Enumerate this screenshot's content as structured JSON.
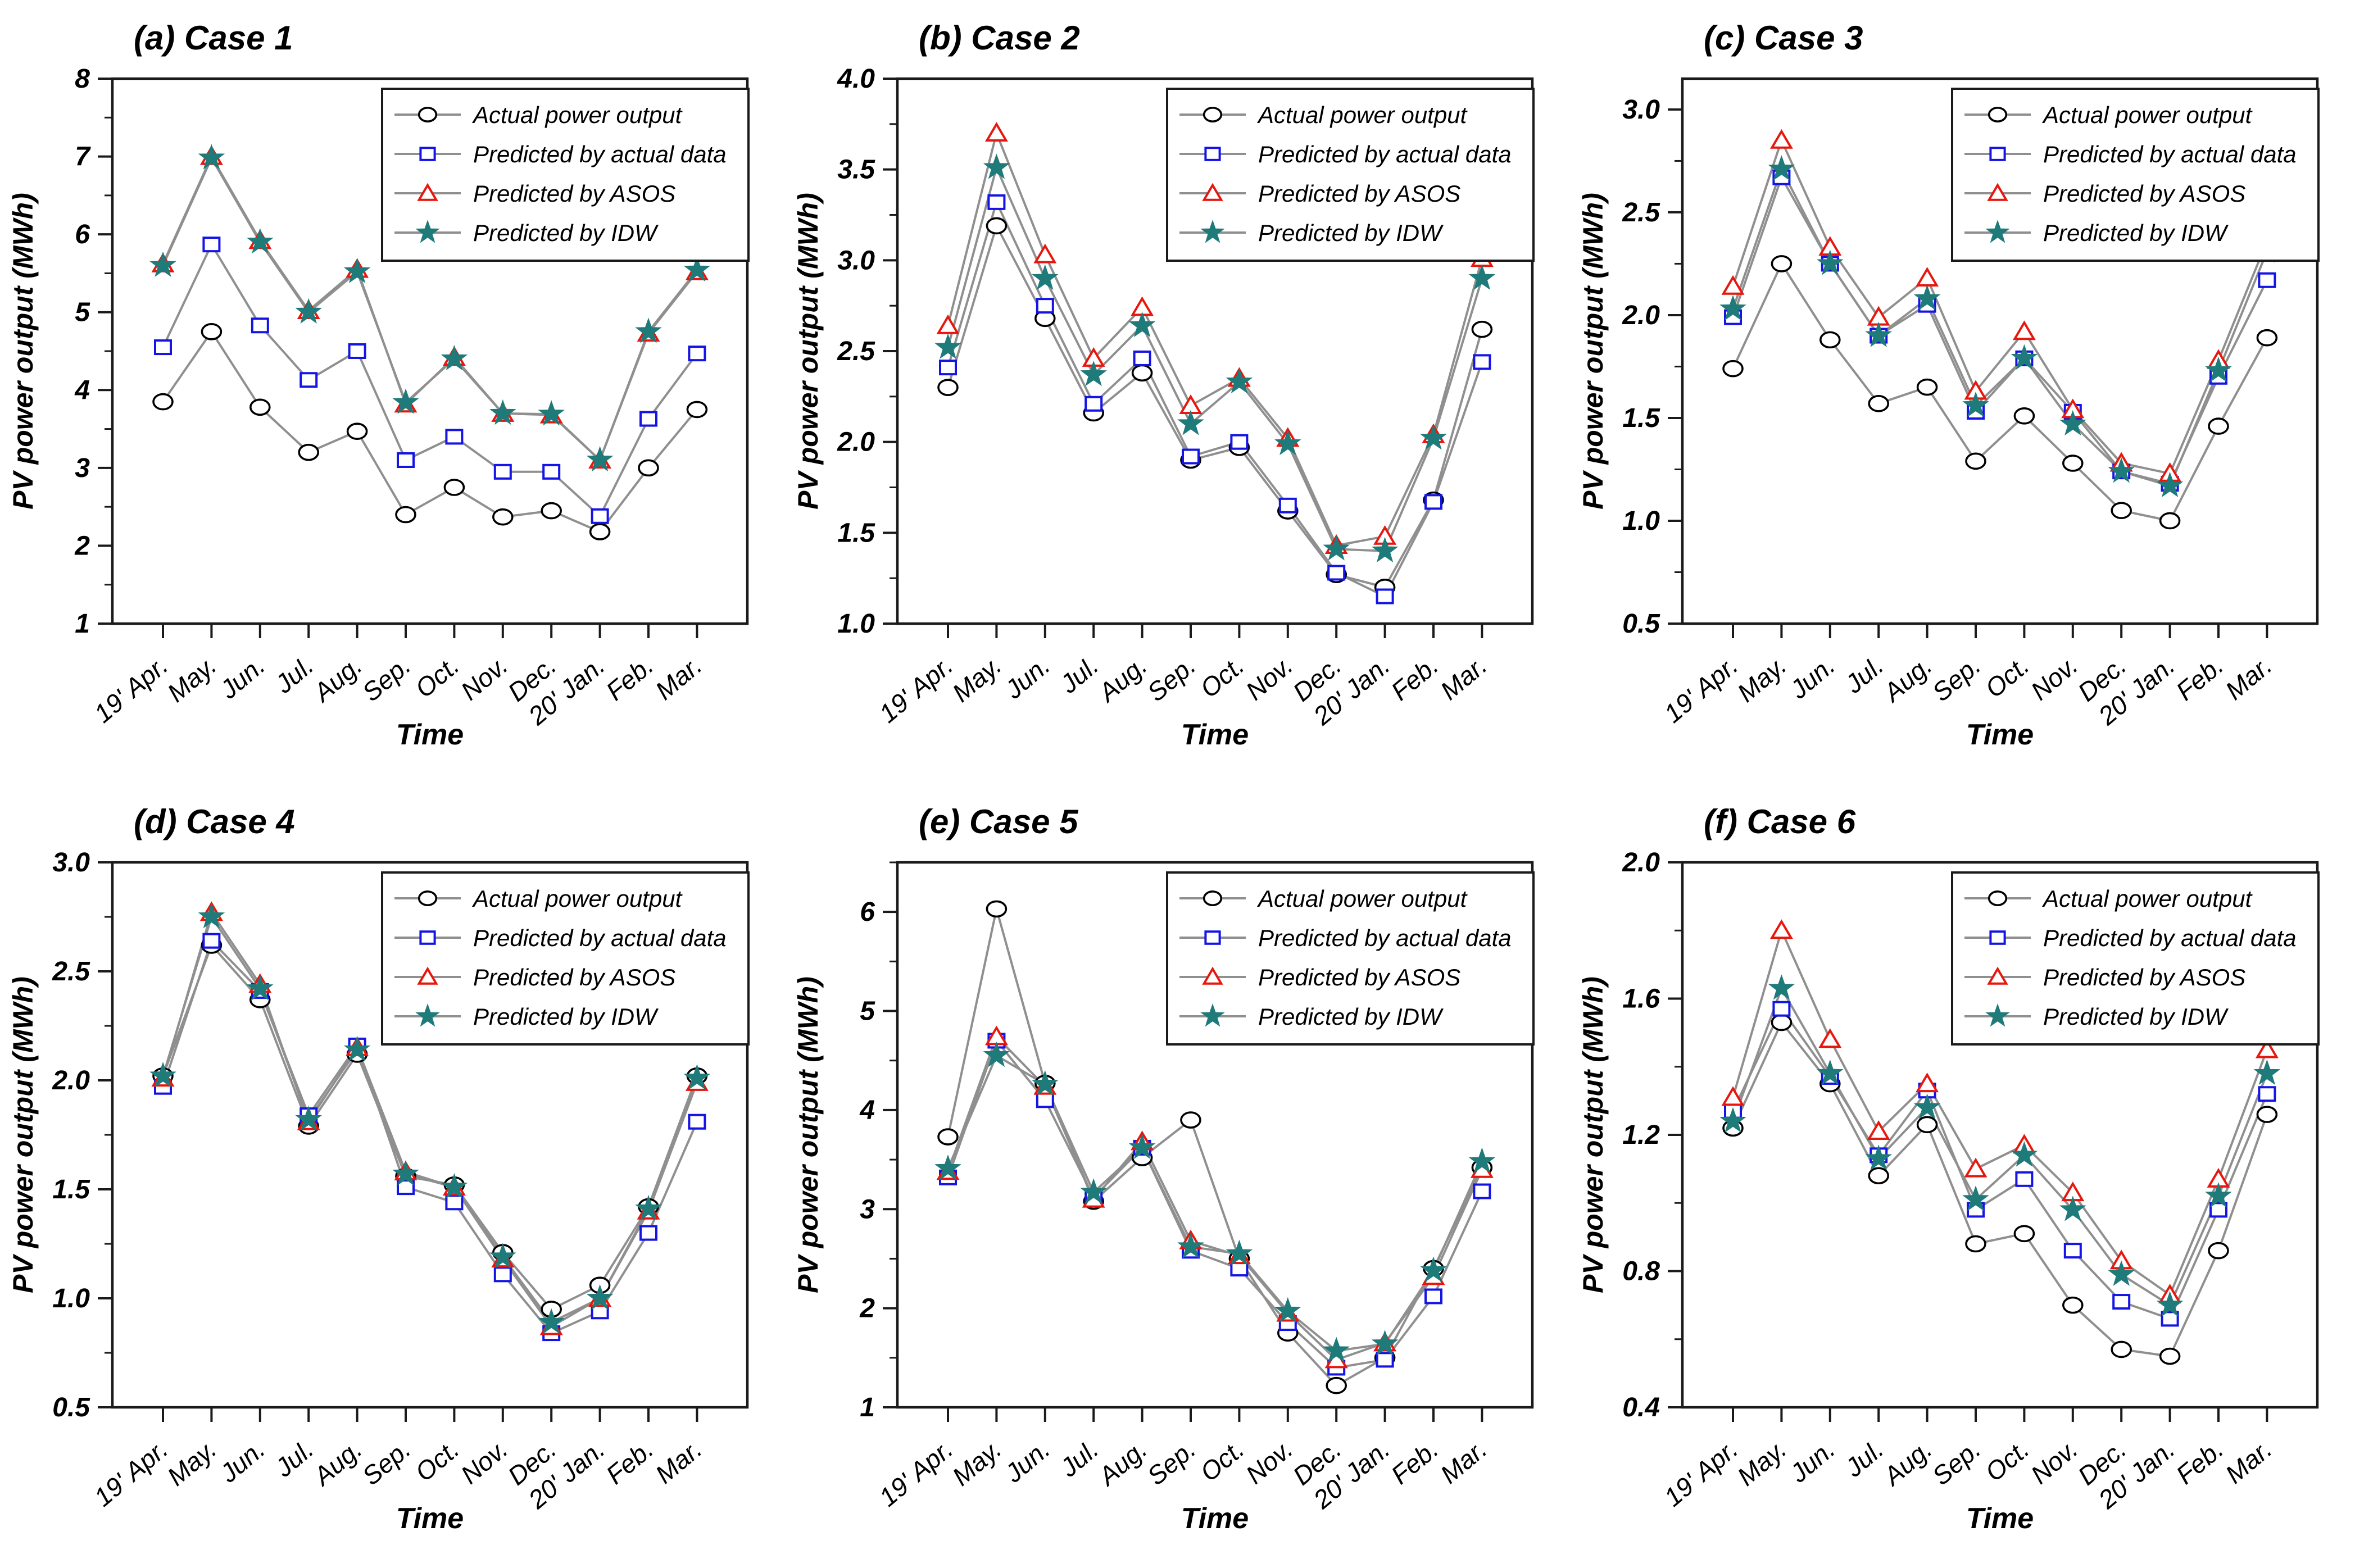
{
  "figure": {
    "x_axis_label": "Time",
    "y_axis_label": "PV power output (MWh)",
    "categories": [
      "19' Apr.",
      "May.",
      "Jun.",
      "Jul.",
      "Aug.",
      "Sep.",
      "Oct.",
      "Nov.",
      "Dec.",
      "20' Jan.",
      "Feb.",
      "Mar."
    ],
    "legend": [
      "Actual power output",
      "Predicted by actual data",
      "Predicted by ASOS",
      "Predicted by IDW"
    ],
    "series_styles": [
      {
        "key": "actual",
        "marker": "circle",
        "marker_color": "#000000",
        "fill": "#ffffff"
      },
      {
        "key": "pred_actual",
        "marker": "square",
        "marker_color": "#1414e6",
        "fill": "#ffffff"
      },
      {
        "key": "pred_asos",
        "marker": "triangle",
        "marker_color": "#e8160c",
        "fill": "#ffffff"
      },
      {
        "key": "pred_idw",
        "marker": "star",
        "marker_color": "#1f7a7a",
        "fill": "#1f7a7a"
      }
    ],
    "line_color": "#8f8f8f",
    "axis_color": "#1a1a1a"
  },
  "chart_data": [
    {
      "type": "line",
      "title": "(a) Case 1",
      "xlabel": "Time",
      "ylabel": "PV power output (MWh)",
      "ylim": [
        1,
        8
      ],
      "yticks": [
        1,
        2,
        3,
        4,
        5,
        6,
        7,
        8
      ],
      "ytick_labels": [
        "1",
        "2",
        "3",
        "4",
        "5",
        "6",
        "7",
        "8"
      ],
      "minor_step": 0.5,
      "series": [
        {
          "name": "Actual power output",
          "values": [
            3.85,
            4.75,
            3.78,
            3.2,
            3.47,
            2.4,
            2.75,
            2.37,
            2.45,
            2.18,
            3.0,
            3.75
          ]
        },
        {
          "name": "Predicted by actual data",
          "values": [
            4.55,
            5.87,
            4.83,
            4.13,
            4.5,
            3.1,
            3.4,
            2.95,
            2.95,
            2.38,
            3.63,
            4.47
          ]
        },
        {
          "name": "Predicted by ASOS",
          "values": [
            5.62,
            7.0,
            5.92,
            5.02,
            5.55,
            3.82,
            4.42,
            3.7,
            3.68,
            3.1,
            4.73,
            5.52
          ]
        },
        {
          "name": "Predicted by IDW",
          "values": [
            5.6,
            6.98,
            5.9,
            5.0,
            5.52,
            3.84,
            4.4,
            3.7,
            3.69,
            3.1,
            4.75,
            5.54
          ]
        }
      ]
    },
    {
      "type": "line",
      "title": "(b) Case 2",
      "xlabel": "Time",
      "ylabel": "PV power output (MWh)",
      "ylim": [
        1.0,
        4.0
      ],
      "yticks": [
        1.0,
        1.5,
        2.0,
        2.5,
        3.0,
        3.5,
        4.0
      ],
      "ytick_labels": [
        "1.0",
        "1.5",
        "2.0",
        "2.5",
        "3.0",
        "3.5",
        "4.0"
      ],
      "minor_step": 0.25,
      "series": [
        {
          "name": "Actual power output",
          "values": [
            2.3,
            3.19,
            2.68,
            2.16,
            2.38,
            1.9,
            1.97,
            1.62,
            1.27,
            1.2,
            1.68,
            2.62
          ]
        },
        {
          "name": "Predicted by actual data",
          "values": [
            2.41,
            3.32,
            2.75,
            2.21,
            2.46,
            1.92,
            2.0,
            1.65,
            1.28,
            1.15,
            1.67,
            2.44
          ]
        },
        {
          "name": "Predicted by ASOS",
          "values": [
            2.64,
            3.7,
            3.03,
            2.46,
            2.74,
            2.2,
            2.35,
            2.02,
            1.43,
            1.48,
            2.04,
            3.01
          ]
        },
        {
          "name": "Predicted by IDW",
          "values": [
            2.52,
            3.51,
            2.9,
            2.37,
            2.64,
            2.1,
            2.33,
            1.99,
            1.41,
            1.4,
            2.02,
            2.9
          ]
        }
      ]
    },
    {
      "type": "line",
      "title": "(c) Case 3",
      "xlabel": "Time",
      "ylabel": "PV power output (MWh)",
      "ylim": [
        0.5,
        3.15
      ],
      "yticks": [
        0.5,
        1.0,
        1.5,
        2.0,
        2.5,
        3.0
      ],
      "ytick_labels": [
        "0.5",
        "1.0",
        "1.5",
        "2.0",
        "2.5",
        "3.0"
      ],
      "minor_step": 0.25,
      "series": [
        {
          "name": "Actual power output",
          "values": [
            1.74,
            2.25,
            1.88,
            1.57,
            1.65,
            1.29,
            1.51,
            1.28,
            1.05,
            1.0,
            1.46,
            1.89
          ]
        },
        {
          "name": "Predicted by actual data",
          "values": [
            1.99,
            2.67,
            2.25,
            1.9,
            2.05,
            1.53,
            1.79,
            1.53,
            1.24,
            1.18,
            1.7,
            2.17
          ]
        },
        {
          "name": "Predicted by ASOS",
          "values": [
            2.14,
            2.85,
            2.33,
            1.99,
            2.18,
            1.63,
            1.92,
            1.54,
            1.28,
            1.23,
            1.78,
            2.36
          ]
        },
        {
          "name": "Predicted by IDW",
          "values": [
            2.03,
            2.71,
            2.25,
            1.9,
            2.08,
            1.56,
            1.79,
            1.47,
            1.24,
            1.17,
            1.73,
            2.31
          ]
        }
      ]
    },
    {
      "type": "line",
      "title": "(d) Case 4",
      "xlabel": "Time",
      "ylabel": "PV power output (MWh)",
      "ylim": [
        0.5,
        3.0
      ],
      "yticks": [
        0.5,
        1.0,
        1.5,
        2.0,
        2.5,
        3.0
      ],
      "ytick_labels": [
        "0.5",
        "1.0",
        "1.5",
        "2.0",
        "2.5",
        "3.0"
      ],
      "minor_step": 0.25,
      "series": [
        {
          "name": "Actual power output",
          "values": [
            2.02,
            2.62,
            2.37,
            1.79,
            2.12,
            1.56,
            1.52,
            1.21,
            0.95,
            1.06,
            1.42,
            2.02
          ]
        },
        {
          "name": "Predicted by actual data",
          "values": [
            1.97,
            2.64,
            2.41,
            1.84,
            2.16,
            1.51,
            1.44,
            1.11,
            0.84,
            0.94,
            1.3,
            1.81
          ]
        },
        {
          "name": "Predicted by ASOS",
          "values": [
            2.01,
            2.77,
            2.44,
            1.81,
            2.15,
            1.58,
            1.51,
            1.18,
            0.87,
            1.0,
            1.4,
            1.99
          ]
        },
        {
          "name": "Predicted by IDW",
          "values": [
            2.02,
            2.75,
            2.42,
            1.82,
            2.14,
            1.57,
            1.51,
            1.19,
            0.89,
            1.0,
            1.41,
            2.01
          ]
        }
      ]
    },
    {
      "type": "line",
      "title": "(e) Case 5",
      "xlabel": "Time",
      "ylabel": "PV power output (MWh)",
      "ylim": [
        1,
        6.5
      ],
      "yticks": [
        1,
        2,
        3,
        4,
        5,
        6
      ],
      "ytick_labels": [
        "1",
        "2",
        "3",
        "4",
        "5",
        "6"
      ],
      "minor_step": 0.5,
      "series": [
        {
          "name": "Actual power output",
          "values": [
            3.73,
            6.03,
            4.27,
            3.08,
            3.52,
            3.9,
            2.5,
            1.75,
            1.22,
            1.5,
            2.4,
            3.42
          ]
        },
        {
          "name": "Predicted by actual data",
          "values": [
            3.32,
            4.7,
            4.1,
            3.12,
            3.62,
            2.58,
            2.4,
            1.85,
            1.4,
            1.48,
            2.12,
            3.18
          ]
        },
        {
          "name": "Predicted by ASOS",
          "values": [
            3.38,
            4.74,
            4.24,
            3.1,
            3.68,
            2.68,
            2.53,
            1.95,
            1.48,
            1.65,
            2.32,
            3.4
          ]
        },
        {
          "name": "Predicted by IDW",
          "values": [
            3.41,
            4.55,
            4.26,
            3.17,
            3.62,
            2.62,
            2.55,
            1.97,
            1.57,
            1.64,
            2.38,
            3.48
          ]
        }
      ]
    },
    {
      "type": "line",
      "title": "(f) Case 6",
      "xlabel": "Time",
      "ylabel": "PV power output (MWh)",
      "ylim": [
        0.4,
        2.0
      ],
      "yticks": [
        0.4,
        0.8,
        1.2,
        1.6,
        2.0
      ],
      "ytick_labels": [
        "0.4",
        "0.8",
        "1.2",
        "1.6",
        "2.0"
      ],
      "minor_step": 0.2,
      "series": [
        {
          "name": "Actual power output",
          "values": [
            1.22,
            1.53,
            1.35,
            1.08,
            1.23,
            0.88,
            0.91,
            0.7,
            0.57,
            0.55,
            0.86,
            1.26
          ]
        },
        {
          "name": "Predicted by actual data",
          "values": [
            1.27,
            1.57,
            1.37,
            1.14,
            1.33,
            0.98,
            1.07,
            0.86,
            0.71,
            0.66,
            0.98,
            1.32
          ]
        },
        {
          "name": "Predicted by ASOS",
          "values": [
            1.31,
            1.8,
            1.48,
            1.21,
            1.35,
            1.1,
            1.17,
            1.03,
            0.83,
            0.73,
            1.07,
            1.45
          ]
        },
        {
          "name": "Predicted by IDW",
          "values": [
            1.24,
            1.63,
            1.38,
            1.13,
            1.28,
            1.01,
            1.14,
            0.98,
            0.79,
            0.7,
            1.02,
            1.38
          ]
        }
      ]
    }
  ]
}
